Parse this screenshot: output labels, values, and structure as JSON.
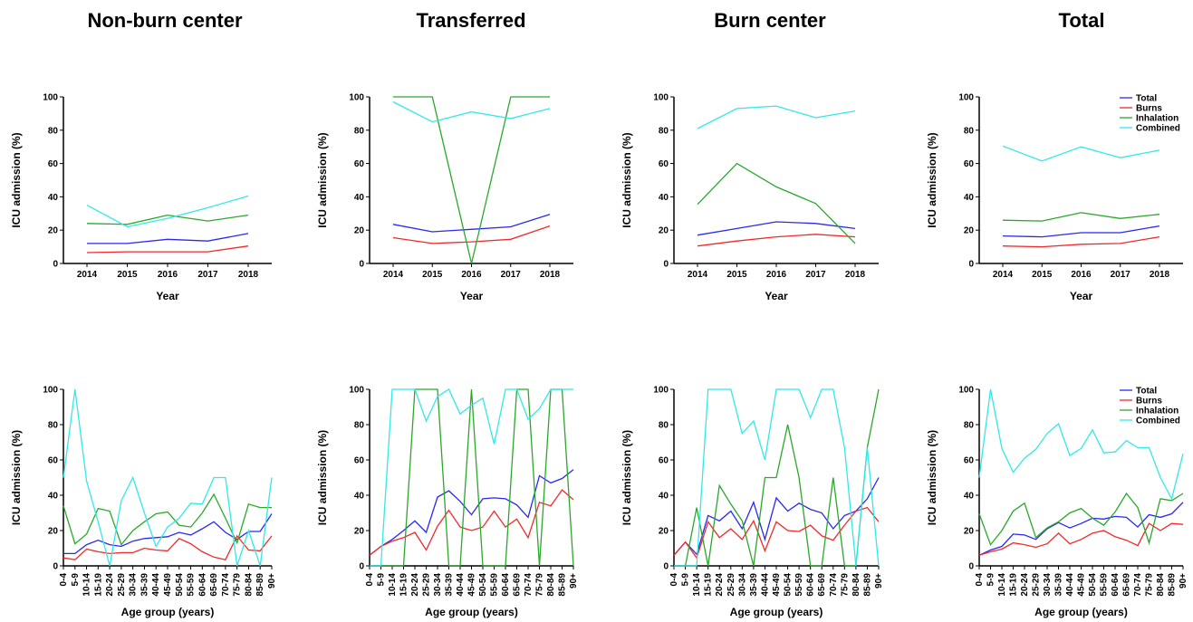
{
  "colors": {
    "Total": "#2929f0",
    "Burns": "#f02a2a",
    "Inhalation": "#2aa82a",
    "Combined": "#33e8e8"
  },
  "column_titles": [
    "Non-burn center",
    "Transferred",
    "Burn center",
    "Total"
  ],
  "age_groups": [
    "0-4",
    "5-9",
    "10-14",
    "15-19",
    "20-24",
    "25-29",
    "30-34",
    "35-39",
    "40-44",
    "45-49",
    "50-54",
    "55-59",
    "60-64",
    "65-69",
    "70-74",
    "75-79",
    "80-84",
    "85-89",
    "90+"
  ],
  "chart_data": [
    {
      "type": "line",
      "title": "Non-burn center",
      "xlabel": "Year",
      "ylabel": "ICU admission (%)",
      "ylim": [
        0,
        100
      ],
      "yticks": [
        0,
        20,
        40,
        60,
        80,
        100
      ],
      "legend": false,
      "categories": [
        "2014",
        "2015",
        "2016",
        "2017",
        "2018"
      ],
      "series": [
        {
          "name": "Total",
          "values": [
            12,
            12,
            14.5,
            13.5,
            18
          ]
        },
        {
          "name": "Burns",
          "values": [
            6.5,
            7,
            7,
            7,
            10.5
          ]
        },
        {
          "name": "Inhalation",
          "values": [
            24,
            23.5,
            29,
            25.5,
            29
          ]
        },
        {
          "name": "Combined",
          "values": [
            35,
            22,
            27,
            33.5,
            40.5
          ]
        }
      ]
    },
    {
      "type": "line",
      "title": "Transferred",
      "xlabel": "Year",
      "ylabel": "ICU admission (%)",
      "ylim": [
        0,
        100
      ],
      "yticks": [
        0,
        20,
        40,
        60,
        80,
        100
      ],
      "legend": false,
      "categories": [
        "2014",
        "2015",
        "2016",
        "2017",
        "2018"
      ],
      "series": [
        {
          "name": "Total",
          "values": [
            23.5,
            19,
            20.5,
            22,
            29.5
          ]
        },
        {
          "name": "Burns",
          "values": [
            15.5,
            12,
            13,
            14.5,
            22.5
          ]
        },
        {
          "name": "Inhalation",
          "values": [
            100,
            100,
            0,
            100,
            100
          ]
        },
        {
          "name": "Combined",
          "values": [
            97,
            85,
            91,
            87,
            93
          ]
        }
      ]
    },
    {
      "type": "line",
      "title": "Burn center",
      "xlabel": "Year",
      "ylabel": "ICU admission (%)",
      "ylim": [
        0,
        100
      ],
      "yticks": [
        0,
        20,
        40,
        60,
        80,
        100
      ],
      "legend": false,
      "categories": [
        "2014",
        "2015",
        "2016",
        "2017",
        "2018"
      ],
      "series": [
        {
          "name": "Total",
          "values": [
            17,
            21,
            25,
            24,
            21
          ]
        },
        {
          "name": "Burns",
          "values": [
            10.5,
            13.5,
            16,
            17.5,
            16
          ]
        },
        {
          "name": "Inhalation",
          "values": [
            35.5,
            60,
            46,
            36,
            12
          ]
        },
        {
          "name": "Combined",
          "values": [
            81,
            93,
            94.5,
            87.5,
            91.5
          ]
        }
      ]
    },
    {
      "type": "line",
      "title": "Total",
      "xlabel": "Year",
      "ylabel": "ICU admission (%)",
      "ylim": [
        0,
        100
      ],
      "yticks": [
        0,
        20,
        40,
        60,
        80,
        100
      ],
      "legend": true,
      "legend_position": "top-right",
      "categories": [
        "2014",
        "2015",
        "2016",
        "2017",
        "2018"
      ],
      "series": [
        {
          "name": "Total",
          "values": [
            16.5,
            16,
            18.5,
            18.5,
            22.5
          ]
        },
        {
          "name": "Burns",
          "values": [
            10.5,
            10,
            11.5,
            12,
            16
          ]
        },
        {
          "name": "Inhalation",
          "values": [
            26,
            25.5,
            30.5,
            27,
            29.5
          ]
        },
        {
          "name": "Combined",
          "values": [
            70.5,
            61.5,
            70,
            63.5,
            68
          ]
        }
      ]
    },
    {
      "type": "line",
      "xlabel": "Age group (years)",
      "ylabel": "ICU admission (%)",
      "ylim": [
        0,
        100
      ],
      "yticks": [
        0,
        20,
        40,
        60,
        80,
        100
      ],
      "legend": false,
      "series": [
        {
          "name": "Total",
          "values": [
            7,
            7,
            12,
            14.5,
            12,
            11,
            14,
            15.5,
            16,
            16.5,
            19,
            17.5,
            21,
            25,
            19,
            15,
            19.5,
            19.5,
            29.5
          ]
        },
        {
          "name": "Burns",
          "values": [
            4.5,
            3.5,
            9.5,
            8,
            7,
            7.5,
            7.5,
            10,
            9,
            8.5,
            15.5,
            12.5,
            8,
            5,
            3.5,
            17,
            9,
            8.5,
            17
          ]
        },
        {
          "name": "Inhalation",
          "values": [
            34,
            12.5,
            18,
            32.5,
            31,
            12,
            20,
            25,
            29.5,
            30.5,
            23,
            22,
            30,
            40.5,
            27,
            13,
            35,
            33,
            33
          ]
        },
        {
          "name": "Combined",
          "values": [
            50,
            100,
            48,
            25,
            0,
            37,
            50,
            30,
            11,
            22,
            27,
            35.5,
            35,
            50,
            50,
            0,
            20,
            0,
            50
          ]
        }
      ]
    },
    {
      "type": "line",
      "xlabel": "Age group (years)",
      "ylabel": "ICU admission (%)",
      "ylim": [
        0,
        100
      ],
      "yticks": [
        0,
        20,
        40,
        60,
        80,
        100
      ],
      "legend": false,
      "series": [
        {
          "name": "Total",
          "values": [
            6,
            11,
            15,
            20,
            25.5,
            19,
            39,
            42.5,
            36.5,
            29,
            38,
            38.5,
            38,
            34.5,
            27.5,
            51,
            47,
            49.5,
            54.5
          ]
        },
        {
          "name": "Burns",
          "values": [
            6,
            11,
            14,
            16,
            19,
            9,
            22.5,
            31.5,
            22,
            20,
            22,
            31,
            22,
            26.5,
            16,
            36,
            34,
            43,
            37.5
          ]
        },
        {
          "name": "Inhalation",
          "values": [
            0,
            0,
            0,
            0,
            100,
            100,
            100,
            0,
            0,
            100,
            0,
            0,
            0,
            100,
            100,
            0,
            100,
            100,
            0
          ]
        },
        {
          "name": "Combined",
          "values": [
            0,
            0,
            100,
            100,
            100,
            82,
            96,
            100,
            86,
            91,
            95,
            69,
            100,
            100,
            83,
            89,
            100,
            100,
            100
          ]
        }
      ]
    },
    {
      "type": "line",
      "xlabel": "Age group (years)",
      "ylabel": "ICU admission (%)",
      "ylim": [
        0,
        100
      ],
      "yticks": [
        0,
        20,
        40,
        60,
        80,
        100
      ],
      "legend": false,
      "series": [
        {
          "name": "Total",
          "values": [
            6,
            13.5,
            6.5,
            28.5,
            25.5,
            31,
            21,
            36,
            15,
            38.5,
            31,
            35.5,
            32,
            30,
            21,
            28.5,
            31,
            38,
            50
          ]
        },
        {
          "name": "Burns",
          "values": [
            6,
            13.5,
            4.5,
            25,
            16,
            21,
            15,
            25.5,
            8.5,
            25,
            20,
            19.5,
            23,
            17,
            14.5,
            23,
            31,
            33,
            25
          ]
        },
        {
          "name": "Inhalation",
          "values": [
            0,
            0,
            33,
            0,
            45.5,
            35,
            25.5,
            0,
            50,
            50,
            80,
            50,
            0,
            0,
            50,
            0,
            0,
            67,
            100
          ]
        },
        {
          "name": "Combined",
          "values": [
            0,
            0,
            0,
            100,
            100,
            100,
            75,
            82,
            60,
            100,
            100,
            100,
            84,
            100,
            100,
            67,
            0,
            67,
            0
          ]
        }
      ]
    },
    {
      "type": "line",
      "xlabel": "Age group (years)",
      "ylabel": "ICU admission (%)",
      "ylim": [
        0,
        100
      ],
      "yticks": [
        0,
        20,
        40,
        60,
        80,
        100
      ],
      "legend": true,
      "legend_position": "top-right",
      "series": [
        {
          "name": "Total",
          "values": [
            6,
            9,
            11,
            18,
            17.5,
            15,
            21,
            24.5,
            21.5,
            24,
            27,
            26.5,
            28,
            27.5,
            22,
            29,
            27.5,
            29.5,
            36
          ]
        },
        {
          "name": "Burns",
          "values": [
            6,
            8,
            9.5,
            13,
            12,
            10.5,
            12.5,
            18.5,
            12.5,
            15,
            18.5,
            20,
            16.5,
            14.5,
            11.5,
            24,
            20,
            24,
            23.5
          ]
        },
        {
          "name": "Inhalation",
          "values": [
            29.5,
            12,
            20,
            31,
            35.5,
            16,
            21.5,
            25,
            30,
            32.5,
            27,
            23,
            30.5,
            41,
            33,
            13,
            38,
            37,
            41
          ]
        },
        {
          "name": "Combined",
          "values": [
            50,
            100,
            66.5,
            53,
            61,
            66,
            75,
            80.5,
            62.5,
            66.5,
            77,
            64,
            64.5,
            71,
            67,
            67,
            50,
            38,
            63.5
          ]
        }
      ]
    }
  ]
}
